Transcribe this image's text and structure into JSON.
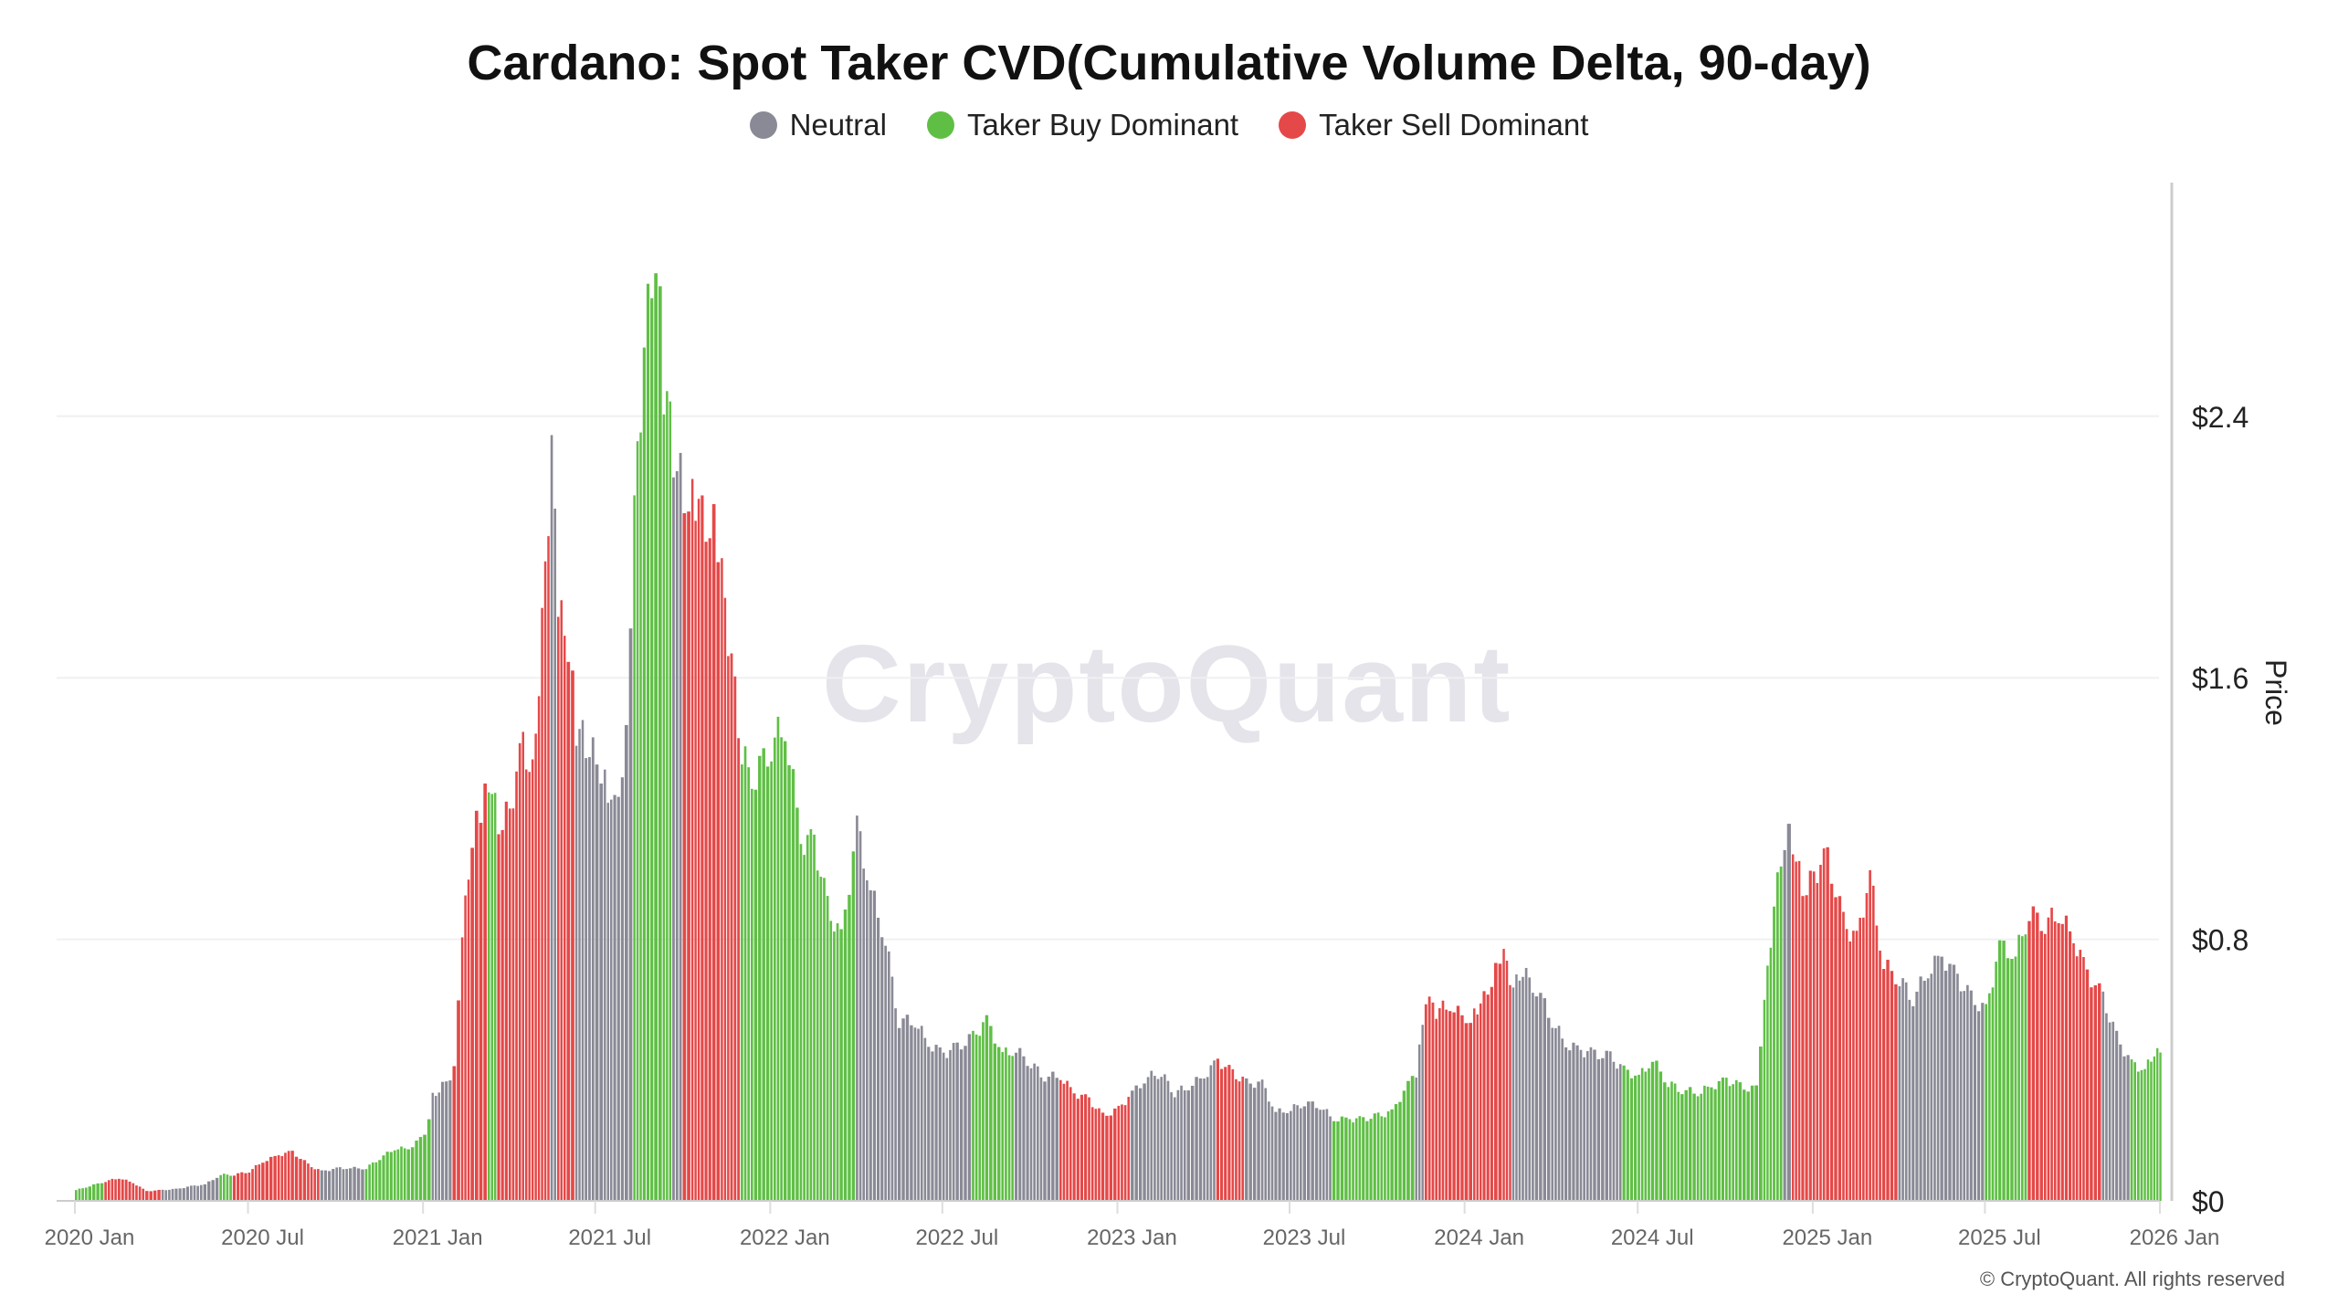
{
  "chart_data": {
    "type": "bar",
    "title": "Cardano: Spot Taker CVD(Cumulative Volume Delta, 90-day)",
    "ylabel": "Price",
    "ylim": [
      0,
      2.95
    ],
    "yticks": [
      {
        "v": 0,
        "label": "$0"
      },
      {
        "v": 0.8,
        "label": "$0.8"
      },
      {
        "v": 1.6,
        "label": "$1.6"
      },
      {
        "v": 2.4,
        "label": "$2.4"
      }
    ],
    "xticks": [
      {
        "d": "2020-01-01",
        "label": "2020 Jan"
      },
      {
        "d": "2020-07-01",
        "label": "2020 Jul"
      },
      {
        "d": "2021-01-01",
        "label": "2021 Jan"
      },
      {
        "d": "2021-07-01",
        "label": "2021 Jul"
      },
      {
        "d": "2022-01-01",
        "label": "2022 Jan"
      },
      {
        "d": "2022-07-01",
        "label": "2022 Jul"
      },
      {
        "d": "2023-01-01",
        "label": "2023 Jan"
      },
      {
        "d": "2023-07-01",
        "label": "2023 Jul"
      },
      {
        "d": "2024-01-01",
        "label": "2024 Jan"
      },
      {
        "d": "2024-07-01",
        "label": "2024 Jul"
      },
      {
        "d": "2025-01-01",
        "label": "2025 Jan"
      },
      {
        "d": "2025-07-01",
        "label": "2025 Jul"
      },
      {
        "d": "2026-01-01",
        "label": "2026 Jan"
      }
    ],
    "xlim": [
      "2020-01-01",
      "2026-01-01"
    ],
    "grid": true,
    "legend_position": "top-center",
    "legend": [
      {
        "key": "N",
        "name": "Neutral",
        "color": "#8a8a96"
      },
      {
        "key": "B",
        "name": "Taker Buy Dominant",
        "color": "#5fbf45"
      },
      {
        "key": "S",
        "name": "Taker Sell Dominant",
        "color": "#e54848"
      }
    ],
    "points": [
      [
        "2020-01-01",
        0.033,
        "B"
      ],
      [
        "2020-01-15",
        0.045,
        "B"
      ],
      [
        "2020-02-01",
        0.06,
        "S"
      ],
      [
        "2020-02-15",
        0.07,
        "S"
      ],
      [
        "2020-03-01",
        0.055,
        "S"
      ],
      [
        "2020-03-15",
        0.03,
        "S"
      ],
      [
        "2020-04-01",
        0.033,
        "N"
      ],
      [
        "2020-04-15",
        0.036,
        "N"
      ],
      [
        "2020-05-01",
        0.045,
        "N"
      ],
      [
        "2020-05-15",
        0.05,
        "N"
      ],
      [
        "2020-06-01",
        0.08,
        "B"
      ],
      [
        "2020-06-15",
        0.08,
        "S"
      ],
      [
        "2020-07-01",
        0.09,
        "S"
      ],
      [
        "2020-07-15",
        0.12,
        "S"
      ],
      [
        "2020-08-01",
        0.14,
        "S"
      ],
      [
        "2020-08-15",
        0.15,
        "S"
      ],
      [
        "2020-09-01",
        0.11,
        "S"
      ],
      [
        "2020-09-15",
        0.09,
        "N"
      ],
      [
        "2020-10-01",
        0.1,
        "N"
      ],
      [
        "2020-10-15",
        0.1,
        "N"
      ],
      [
        "2020-11-01",
        0.1,
        "B"
      ],
      [
        "2020-11-15",
        0.13,
        "B"
      ],
      [
        "2020-12-01",
        0.16,
        "B"
      ],
      [
        "2020-12-15",
        0.16,
        "B"
      ],
      [
        "2021-01-01",
        0.2,
        "B"
      ],
      [
        "2021-01-10",
        0.32,
        "N"
      ],
      [
        "2021-01-20",
        0.35,
        "N"
      ],
      [
        "2021-02-01",
        0.4,
        "S"
      ],
      [
        "2021-02-10",
        0.8,
        "S"
      ],
      [
        "2021-02-20",
        1.1,
        "S"
      ],
      [
        "2021-03-01",
        1.2,
        "S"
      ],
      [
        "2021-03-10",
        1.3,
        "B"
      ],
      [
        "2021-03-20",
        1.15,
        "S"
      ],
      [
        "2021-04-01",
        1.2,
        "S"
      ],
      [
        "2021-04-15",
        1.4,
        "S"
      ],
      [
        "2021-04-25",
        1.3,
        "S"
      ],
      [
        "2021-05-05",
        1.75,
        "S"
      ],
      [
        "2021-05-15",
        2.3,
        "N"
      ],
      [
        "2021-05-22",
        1.8,
        "S"
      ],
      [
        "2021-06-01",
        1.7,
        "S"
      ],
      [
        "2021-06-10",
        1.45,
        "N"
      ],
      [
        "2021-06-20",
        1.4,
        "N"
      ],
      [
        "2021-07-01",
        1.35,
        "N"
      ],
      [
        "2021-07-10",
        1.3,
        "N"
      ],
      [
        "2021-07-20",
        1.2,
        "N"
      ],
      [
        "2021-08-01",
        1.4,
        "N"
      ],
      [
        "2021-08-10",
        2.1,
        "B"
      ],
      [
        "2021-08-20",
        2.6,
        "B"
      ],
      [
        "2021-09-01",
        2.9,
        "B"
      ],
      [
        "2021-09-10",
        2.5,
        "B"
      ],
      [
        "2021-09-20",
        2.3,
        "N"
      ],
      [
        "2021-10-01",
        2.15,
        "S"
      ],
      [
        "2021-10-10",
        2.2,
        "S"
      ],
      [
        "2021-10-20",
        2.1,
        "S"
      ],
      [
        "2021-11-01",
        2.05,
        "S"
      ],
      [
        "2021-11-10",
        1.9,
        "S"
      ],
      [
        "2021-11-20",
        1.65,
        "S"
      ],
      [
        "2021-12-01",
        1.35,
        "B"
      ],
      [
        "2021-12-15",
        1.3,
        "B"
      ],
      [
        "2022-01-01",
        1.4,
        "B"
      ],
      [
        "2022-01-15",
        1.45,
        "B"
      ],
      [
        "2022-02-01",
        1.1,
        "B"
      ],
      [
        "2022-02-15",
        1.1,
        "B"
      ],
      [
        "2022-03-01",
        0.9,
        "B"
      ],
      [
        "2022-03-15",
        0.8,
        "B"
      ],
      [
        "2022-04-01",
        1.15,
        "N"
      ],
      [
        "2022-04-15",
        0.95,
        "N"
      ],
      [
        "2022-05-01",
        0.8,
        "N"
      ],
      [
        "2022-05-15",
        0.55,
        "N"
      ],
      [
        "2022-06-01",
        0.55,
        "N"
      ],
      [
        "2022-06-15",
        0.48,
        "N"
      ],
      [
        "2022-07-01",
        0.45,
        "N"
      ],
      [
        "2022-07-15",
        0.47,
        "N"
      ],
      [
        "2022-08-01",
        0.5,
        "B"
      ],
      [
        "2022-08-15",
        0.55,
        "B"
      ],
      [
        "2022-09-01",
        0.45,
        "B"
      ],
      [
        "2022-09-15",
        0.46,
        "N"
      ],
      [
        "2022-10-01",
        0.42,
        "N"
      ],
      [
        "2022-10-15",
        0.38,
        "N"
      ],
      [
        "2022-11-01",
        0.38,
        "S"
      ],
      [
        "2022-11-15",
        0.33,
        "S"
      ],
      [
        "2022-12-01",
        0.31,
        "S"
      ],
      [
        "2022-12-15",
        0.26,
        "S"
      ],
      [
        "2023-01-01",
        0.28,
        "S"
      ],
      [
        "2023-01-15",
        0.33,
        "N"
      ],
      [
        "2023-02-01",
        0.38,
        "N"
      ],
      [
        "2023-02-15",
        0.39,
        "N"
      ],
      [
        "2023-03-01",
        0.33,
        "N"
      ],
      [
        "2023-03-15",
        0.35,
        "N"
      ],
      [
        "2023-04-01",
        0.38,
        "N"
      ],
      [
        "2023-04-15",
        0.43,
        "S"
      ],
      [
        "2023-05-01",
        0.39,
        "S"
      ],
      [
        "2023-05-15",
        0.36,
        "N"
      ],
      [
        "2023-06-01",
        0.36,
        "N"
      ],
      [
        "2023-06-15",
        0.27,
        "N"
      ],
      [
        "2023-07-01",
        0.28,
        "N"
      ],
      [
        "2023-07-15",
        0.3,
        "N"
      ],
      [
        "2023-08-01",
        0.29,
        "N"
      ],
      [
        "2023-08-15",
        0.25,
        "B"
      ],
      [
        "2023-09-01",
        0.25,
        "B"
      ],
      [
        "2023-09-15",
        0.25,
        "B"
      ],
      [
        "2023-10-01",
        0.26,
        "B"
      ],
      [
        "2023-10-15",
        0.27,
        "B"
      ],
      [
        "2023-11-01",
        0.36,
        "B"
      ],
      [
        "2023-11-10",
        0.38,
        "N"
      ],
      [
        "2023-11-20",
        0.62,
        "S"
      ],
      [
        "2023-12-01",
        0.58,
        "S"
      ],
      [
        "2023-12-15",
        0.6,
        "S"
      ],
      [
        "2024-01-01",
        0.55,
        "S"
      ],
      [
        "2024-01-10",
        0.58,
        "S"
      ],
      [
        "2024-01-20",
        0.62,
        "S"
      ],
      [
        "2024-02-01",
        0.7,
        "S"
      ],
      [
        "2024-02-10",
        0.75,
        "S"
      ],
      [
        "2024-02-20",
        0.65,
        "N"
      ],
      [
        "2024-03-01",
        0.7,
        "N"
      ],
      [
        "2024-03-15",
        0.65,
        "N"
      ],
      [
        "2024-04-01",
        0.55,
        "N"
      ],
      [
        "2024-04-15",
        0.48,
        "N"
      ],
      [
        "2024-05-01",
        0.46,
        "N"
      ],
      [
        "2024-05-15",
        0.45,
        "N"
      ],
      [
        "2024-06-01",
        0.44,
        "N"
      ],
      [
        "2024-06-15",
        0.4,
        "B"
      ],
      [
        "2024-07-01",
        0.38,
        "B"
      ],
      [
        "2024-07-15",
        0.43,
        "B"
      ],
      [
        "2024-08-01",
        0.36,
        "B"
      ],
      [
        "2024-08-15",
        0.34,
        "B"
      ],
      [
        "2024-09-01",
        0.33,
        "B"
      ],
      [
        "2024-09-15",
        0.35,
        "B"
      ],
      [
        "2024-10-01",
        0.37,
        "B"
      ],
      [
        "2024-10-15",
        0.35,
        "B"
      ],
      [
        "2024-11-01",
        0.34,
        "B"
      ],
      [
        "2024-11-10",
        0.6,
        "B"
      ],
      [
        "2024-11-20",
        0.9,
        "B"
      ],
      [
        "2024-12-01",
        1.1,
        "N"
      ],
      [
        "2024-12-05",
        1.2,
        "N"
      ],
      [
        "2024-12-10",
        1.1,
        "S"
      ],
      [
        "2024-12-20",
        0.95,
        "S"
      ],
      [
        "2025-01-01",
        1.0,
        "S"
      ],
      [
        "2025-01-15",
        1.05,
        "S"
      ],
      [
        "2025-02-01",
        0.85,
        "S"
      ],
      [
        "2025-02-15",
        0.8,
        "S"
      ],
      [
        "2025-03-01",
        1.0,
        "S"
      ],
      [
        "2025-03-15",
        0.72,
        "S"
      ],
      [
        "2025-04-01",
        0.68,
        "N"
      ],
      [
        "2025-04-15",
        0.62,
        "N"
      ],
      [
        "2025-05-01",
        0.7,
        "N"
      ],
      [
        "2025-05-15",
        0.75,
        "N"
      ],
      [
        "2025-06-01",
        0.68,
        "N"
      ],
      [
        "2025-06-15",
        0.62,
        "N"
      ],
      [
        "2025-07-01",
        0.58,
        "B"
      ],
      [
        "2025-07-15",
        0.78,
        "B"
      ],
      [
        "2025-08-01",
        0.75,
        "B"
      ],
      [
        "2025-08-15",
        0.88,
        "S"
      ],
      [
        "2025-09-01",
        0.85,
        "S"
      ],
      [
        "2025-09-15",
        0.88,
        "S"
      ],
      [
        "2025-10-01",
        0.8,
        "S"
      ],
      [
        "2025-10-15",
        0.7,
        "S"
      ],
      [
        "2025-11-01",
        0.62,
        "N"
      ],
      [
        "2025-11-15",
        0.5,
        "N"
      ],
      [
        "2025-12-01",
        0.42,
        "B"
      ],
      [
        "2025-12-15",
        0.4,
        "B"
      ],
      [
        "2025-12-25",
        0.45,
        "B"
      ]
    ]
  },
  "watermark": "CryptoQuant",
  "footer": "© CryptoQuant. All rights reserved"
}
